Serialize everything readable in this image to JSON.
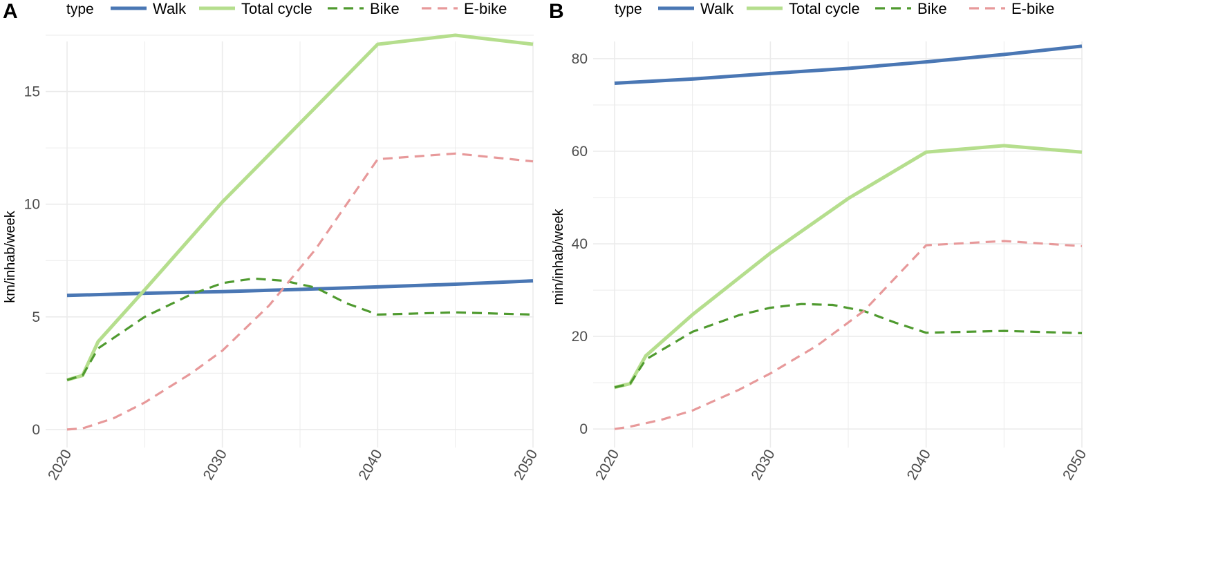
{
  "colors": {
    "walk": "#4a77b4",
    "total_cycle": "#b5de8d",
    "bike": "#4f9a2f",
    "ebike": "#e7999a",
    "grid": "#ebebeb"
  },
  "chart_data": [
    {
      "panel": "A",
      "type": "line",
      "legend_title": "type",
      "legend_position": "top",
      "ylabel": "km/inhab/week",
      "xlim": [
        2020,
        2050
      ],
      "ylim": [
        -0.8,
        17.9
      ],
      "x_ticks": [
        2020,
        2030,
        2040,
        2050
      ],
      "y_ticks": [
        0,
        5,
        10,
        15
      ],
      "grid": true,
      "series": [
        {
          "name": "Walk",
          "key": "walk",
          "dash": "solid",
          "x": [
            2020,
            2025,
            2030,
            2035,
            2040,
            2045,
            2050
          ],
          "y": [
            5.95,
            6.05,
            6.12,
            6.22,
            6.33,
            6.45,
            6.6
          ]
        },
        {
          "name": "Total cycle",
          "key": "total_cycle",
          "dash": "solid",
          "x": [
            2020,
            2021,
            2022,
            2025,
            2030,
            2035,
            2040,
            2045,
            2050
          ],
          "y": [
            2.2,
            2.4,
            3.9,
            6.2,
            10.1,
            13.6,
            17.1,
            17.5,
            17.1
          ]
        },
        {
          "name": "Bike",
          "key": "bike",
          "dash": "dashed",
          "x": [
            2020,
            2021,
            2022,
            2025,
            2028,
            2030,
            2032,
            2034,
            2036,
            2038,
            2040,
            2045,
            2050
          ],
          "y": [
            2.2,
            2.4,
            3.6,
            5.0,
            6.0,
            6.5,
            6.7,
            6.6,
            6.3,
            5.6,
            5.1,
            5.2,
            5.1
          ]
        },
        {
          "name": "E-bike",
          "key": "ebike",
          "dash": "dashed",
          "x": [
            2020,
            2021,
            2023,
            2025,
            2028,
            2030,
            2033,
            2036,
            2040,
            2045,
            2050
          ],
          "y": [
            0,
            0.05,
            0.5,
            1.2,
            2.5,
            3.5,
            5.5,
            8.0,
            12.0,
            12.25,
            11.9
          ]
        }
      ]
    },
    {
      "panel": "B",
      "type": "line",
      "legend_title": "type",
      "legend_position": "top",
      "ylabel": "min/inhab/week",
      "xlim": [
        2020,
        2050
      ],
      "ylim": [
        -4,
        87
      ],
      "x_ticks": [
        2020,
        2030,
        2040,
        2050
      ],
      "y_ticks": [
        0,
        20,
        40,
        60,
        80
      ],
      "grid": true,
      "series": [
        {
          "name": "Walk",
          "key": "walk",
          "dash": "solid",
          "x": [
            2020,
            2025,
            2030,
            2035,
            2040,
            2045,
            2050
          ],
          "y": [
            74.7,
            75.6,
            76.8,
            77.9,
            79.3,
            80.9,
            82.7
          ]
        },
        {
          "name": "Total cycle",
          "key": "total_cycle",
          "dash": "solid",
          "x": [
            2020,
            2021,
            2022,
            2025,
            2030,
            2035,
            2040,
            2045,
            2050
          ],
          "y": [
            9,
            9.8,
            15.8,
            24.7,
            38.0,
            49.8,
            59.8,
            61.2,
            59.8
          ]
        },
        {
          "name": "Bike",
          "key": "bike",
          "dash": "dashed",
          "x": [
            2020,
            2021,
            2022,
            2025,
            2028,
            2030,
            2032,
            2034,
            2036,
            2038,
            2040,
            2045,
            2050
          ],
          "y": [
            9,
            9.8,
            15.0,
            21.0,
            24.6,
            26.2,
            27.0,
            26.8,
            25.5,
            23.0,
            20.8,
            21.2,
            20.7
          ]
        },
        {
          "name": "E-bike",
          "key": "ebike",
          "dash": "dashed",
          "x": [
            2020,
            2021,
            2023,
            2025,
            2028,
            2030,
            2033,
            2036,
            2040,
            2045,
            2050
          ],
          "y": [
            0,
            0.5,
            2.0,
            4.0,
            8.5,
            12.0,
            18.0,
            25.5,
            39.7,
            40.6,
            39.5
          ]
        }
      ]
    }
  ]
}
